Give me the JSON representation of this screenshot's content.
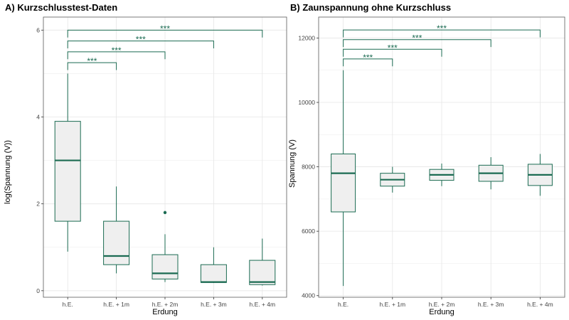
{
  "colors": {
    "accent": "#1b6b52",
    "box_fill": "#efefef",
    "grid": "#e6e6e6",
    "panel_border": "#5a5a5a"
  },
  "chart_data": [
    {
      "type": "box",
      "title": "A) Kurzschlusstest-Daten",
      "xlabel": "Erdung",
      "ylabel": "log(Spannung (V))",
      "categories": [
        "h.E.",
        "h.E. + 1m",
        "h.E. + 2m",
        "h.E. + 3m",
        "h.E. + 4m"
      ],
      "ylim": [
        -0.15,
        6.3
      ],
      "yticks": [
        0,
        2,
        4,
        6
      ],
      "ytick_labels": [
        "0",
        "2",
        "4",
        "6"
      ],
      "grid": true,
      "boxes": [
        {
          "category": "h.E.",
          "whisker_low": 0.9,
          "q1": 1.6,
          "median": 3.0,
          "q3": 3.9,
          "whisker_high": 5.0,
          "outliers": []
        },
        {
          "category": "h.E. + 1m",
          "whisker_low": 0.4,
          "q1": 0.6,
          "median": 0.8,
          "q3": 1.6,
          "whisker_high": 2.4,
          "outliers": []
        },
        {
          "category": "h.E. + 2m",
          "whisker_low": 0.2,
          "q1": 0.27,
          "median": 0.4,
          "q3": 0.83,
          "whisker_high": 1.3,
          "outliers": [
            1.8
          ]
        },
        {
          "category": "h.E. + 3m",
          "whisker_low": 0.18,
          "q1": 0.19,
          "median": 0.2,
          "q3": 0.6,
          "whisker_high": 1.0,
          "outliers": []
        },
        {
          "category": "h.E. + 4m",
          "whisker_low": 0.12,
          "q1": 0.14,
          "median": 0.2,
          "q3": 0.7,
          "whisker_high": 1.2,
          "outliers": []
        }
      ],
      "significance": [
        {
          "from": "h.E.",
          "to": "h.E. + 1m",
          "label": "***",
          "y": 5.25,
          "tip": 5.08
        },
        {
          "from": "h.E.",
          "to": "h.E. + 2m",
          "label": "***",
          "y": 5.5,
          "tip": 5.33
        },
        {
          "from": "h.E.",
          "to": "h.E. + 3m",
          "label": "***",
          "y": 5.75,
          "tip": 5.58
        },
        {
          "from": "h.E.",
          "to": "h.E. + 4m",
          "label": "***",
          "y": 6.0,
          "tip": 5.83
        }
      ]
    },
    {
      "type": "box",
      "title": "B) Zaunspannung ohne Kurzschluss",
      "xlabel": "Erdung",
      "ylabel": "Spannung (V)",
      "categories": [
        "h.E.",
        "h.E. + 1m",
        "h.E. + 2m",
        "h.E. + 3m",
        "h.E. + 4m"
      ],
      "ylim": [
        3950,
        12650
      ],
      "yticks": [
        4000,
        6000,
        8000,
        10000,
        12000
      ],
      "ytick_labels": [
        "4000",
        "6000",
        "8000",
        "10000",
        "12000"
      ],
      "grid": true,
      "boxes": [
        {
          "category": "h.E.",
          "whisker_low": 4300,
          "q1": 6600,
          "median": 7800,
          "q3": 8400,
          "whisker_high": 11000,
          "outliers": []
        },
        {
          "category": "h.E. + 1m",
          "whisker_low": 7200,
          "q1": 7400,
          "median": 7600,
          "q3": 7800,
          "whisker_high": 8000,
          "outliers": []
        },
        {
          "category": "h.E. + 2m",
          "whisker_low": 7400,
          "q1": 7580,
          "median": 7750,
          "q3": 7920,
          "whisker_high": 8100,
          "outliers": []
        },
        {
          "category": "h.E. + 3m",
          "whisker_low": 7300,
          "q1": 7550,
          "median": 7800,
          "q3": 8050,
          "whisker_high": 8300,
          "outliers": []
        },
        {
          "category": "h.E. + 4m",
          "whisker_low": 7100,
          "q1": 7420,
          "median": 7750,
          "q3": 8080,
          "whisker_high": 8400,
          "outliers": []
        }
      ],
      "significance": [
        {
          "from": "h.E.",
          "to": "h.E. + 1m",
          "label": "***",
          "y": 11350,
          "tip": 11120
        },
        {
          "from": "h.E.",
          "to": "h.E. + 2m",
          "label": "***",
          "y": 11650,
          "tip": 11420
        },
        {
          "from": "h.E.",
          "to": "h.E. + 3m",
          "label": "***",
          "y": 11950,
          "tip": 11720
        },
        {
          "from": "h.E.",
          "to": "h.E. + 4m",
          "label": "***",
          "y": 12250,
          "tip": 12020
        }
      ]
    }
  ]
}
